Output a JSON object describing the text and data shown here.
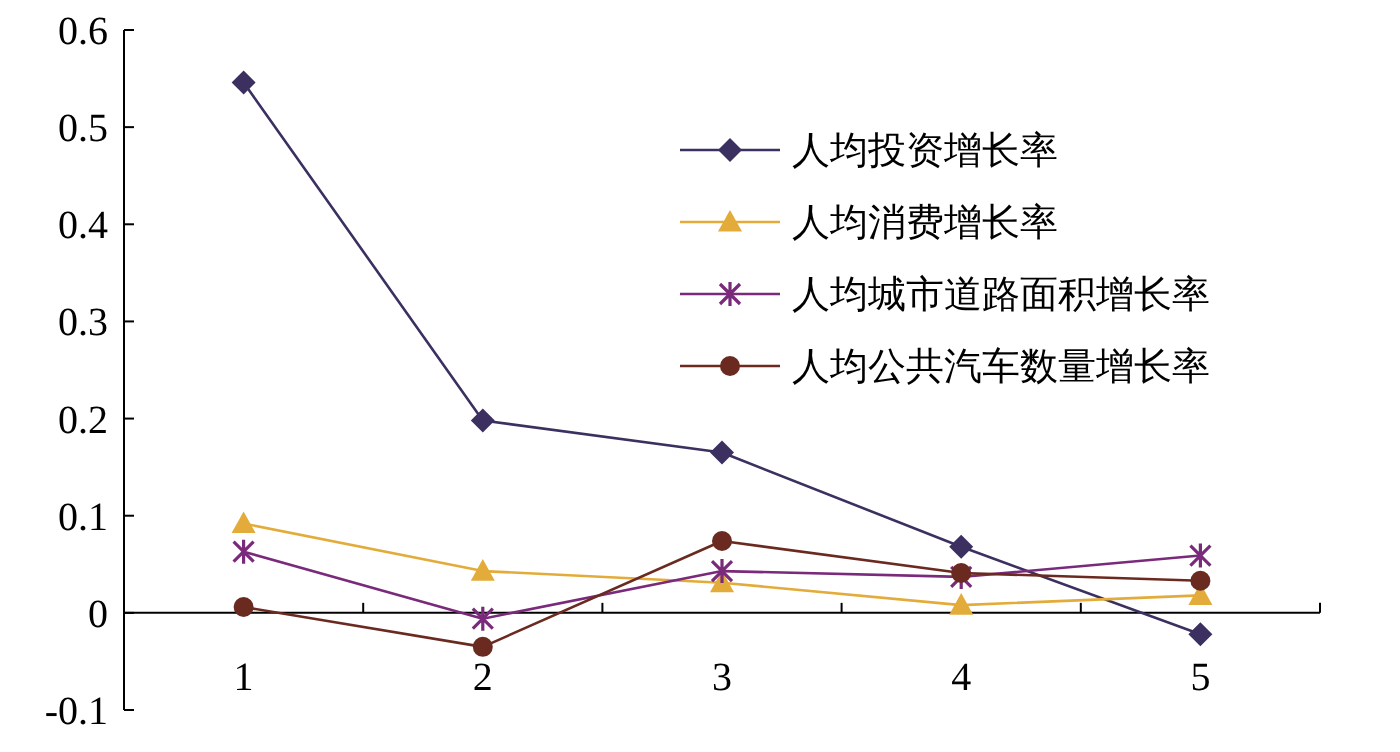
{
  "chart_data": {
    "type": "line",
    "categories": [
      "1",
      "2",
      "3",
      "4",
      "5"
    ],
    "ylim": [
      -0.1,
      0.6
    ],
    "yticks": [
      -0.1,
      0,
      0.1,
      0.2,
      0.3,
      0.4,
      0.5,
      0.6
    ],
    "grid": false,
    "legend": "top right",
    "line_style": "solid",
    "series": [
      {
        "name": "人均投资增长率",
        "color": "#3b3060",
        "marker": "diamond",
        "values": [
          0.546,
          0.198,
          0.165,
          0.068,
          -0.022
        ]
      },
      {
        "name": "人均消费增长率",
        "color": "#e3ac3a",
        "marker": "triangle",
        "values": [
          0.092,
          0.043,
          0.031,
          0.008,
          0.018
        ]
      },
      {
        "name": "人均城市道路面积增长率",
        "color": "#7a2a7a",
        "marker": "cross",
        "values": [
          0.063,
          -0.006,
          0.043,
          0.037,
          0.059
        ]
      },
      {
        "name": "人均公共汽车数量增长率",
        "color": "#6b2a20",
        "marker": "circle",
        "values": [
          0.006,
          -0.035,
          0.074,
          0.041,
          0.033
        ]
      }
    ]
  }
}
